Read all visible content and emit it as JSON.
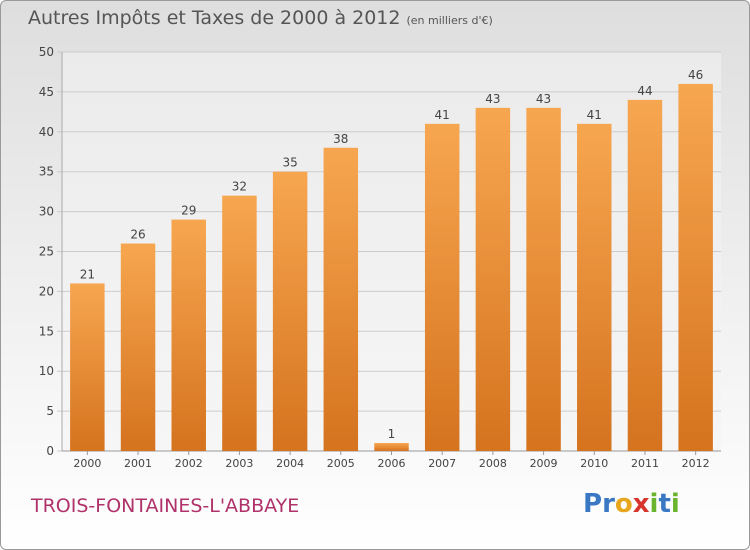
{
  "header": {
    "title": "Autres Impôts et Taxes de 2000 à 2012",
    "unit": "(en milliers d'€)"
  },
  "footer": {
    "commune": "TROIS-FONTAINES-L'ABBAYE",
    "brand": "Proxiti"
  },
  "colors": {
    "bar_top": "#f7a650",
    "bar_bottom": "#d5731f",
    "grid": "#cccccc",
    "axis_text": "#444444",
    "commune": "#b0326a"
  },
  "chart_data": {
    "type": "bar",
    "categories": [
      "2000",
      "2001",
      "2002",
      "2003",
      "2004",
      "2005",
      "2006",
      "2007",
      "2008",
      "2009",
      "2010",
      "2011",
      "2012"
    ],
    "values": [
      21,
      26,
      29,
      32,
      35,
      38,
      1,
      41,
      43,
      43,
      41,
      44,
      46
    ],
    "title": "Autres Impôts et Taxes de 2000 à 2012",
    "ylim": [
      0,
      50
    ],
    "yticks": [
      0,
      5,
      10,
      15,
      20,
      25,
      30,
      35,
      40,
      45,
      50
    ],
    "grid": true
  }
}
